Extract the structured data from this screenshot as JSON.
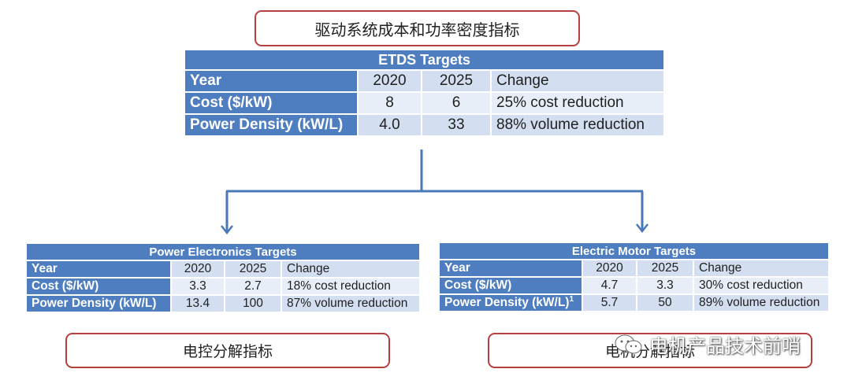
{
  "top_callout": {
    "text": "驱动系统成本和功率密度指标"
  },
  "etds": {
    "title": "ETDS Targets",
    "header": [
      "Year",
      "2020",
      "2025",
      "Change"
    ],
    "rows": [
      [
        "Cost ($/kW)",
        "8",
        "6",
        "25% cost reduction"
      ],
      [
        "Power Density (kW/L)",
        "4.0",
        "33",
        "88% volume reduction"
      ]
    ]
  },
  "power_electronics": {
    "title": "Power Electronics Targets",
    "header": [
      "Year",
      "2020",
      "2025",
      "Change"
    ],
    "rows": [
      [
        "Cost ($/kW)",
        "3.3",
        "2.7",
        "18% cost reduction"
      ],
      [
        "Power Density (kW/L)",
        "13.4",
        "100",
        "87% volume reduction"
      ]
    ]
  },
  "electric_motor": {
    "title": "Electric Motor Targets",
    "header": [
      "Year",
      "2020",
      "2025",
      "Change"
    ],
    "rows": [
      [
        "Cost ($/kW)",
        "4.7",
        "3.3",
        "30% cost reduction"
      ],
      [
        "Power Density (kW/L)",
        "5.7",
        "50",
        "89% volume reduction"
      ]
    ],
    "footnote_mark": "1"
  },
  "left_callout": {
    "text": "电控分解指标"
  },
  "right_callout": {
    "text": "电机分解指标"
  },
  "watermark": {
    "text": "电机产品技术前哨"
  },
  "colors": {
    "header_blue": "#4f7ec0",
    "cell_light": "#d3dff0",
    "cell_lighter": "#e8eef8",
    "callout_border": "#b5403e",
    "arrow": "#4a78b8"
  }
}
